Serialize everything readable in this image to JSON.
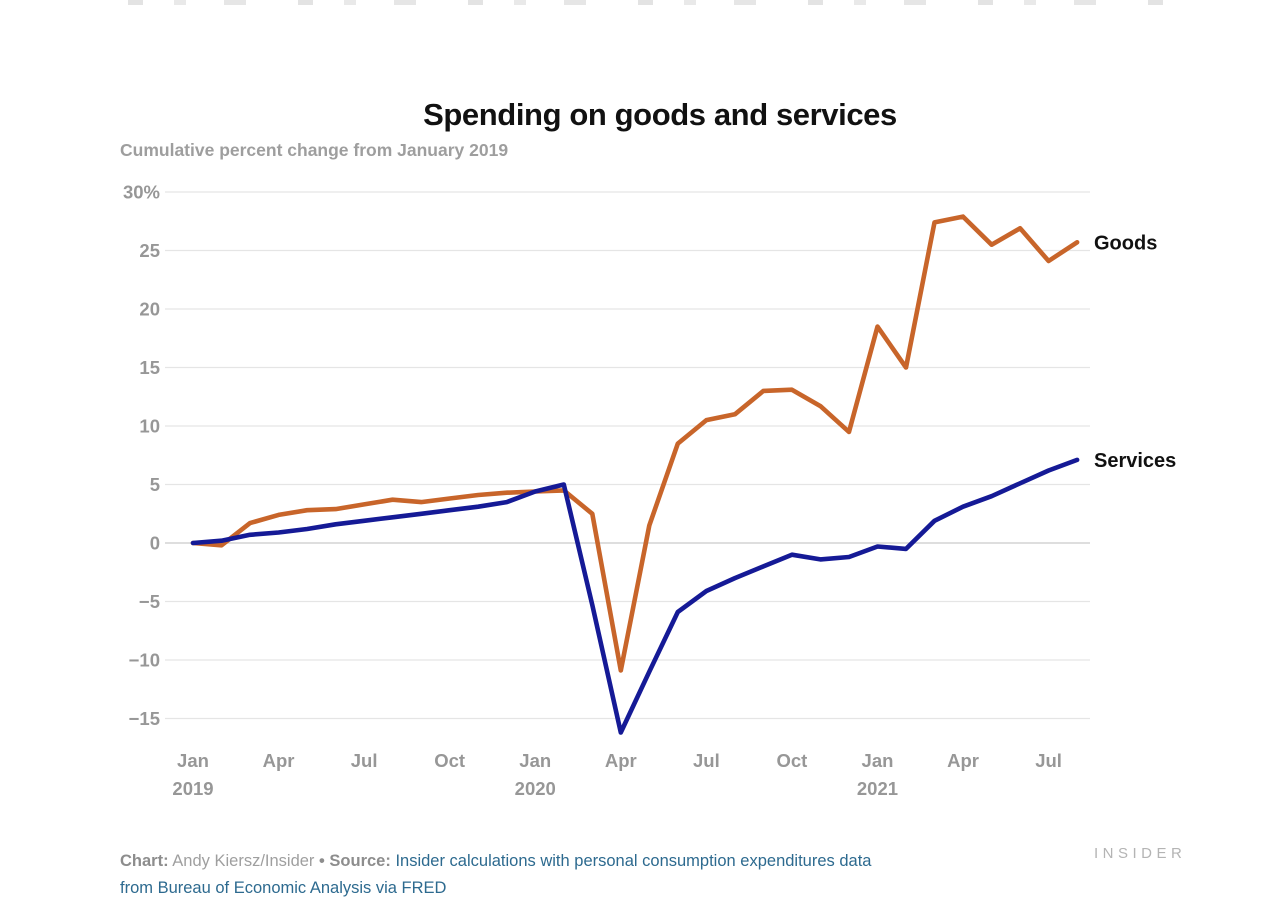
{
  "page": {
    "title": "Spending on goods and services",
    "subtitle": "Cumulative percent change from January 2019",
    "watermark": "INSIDER"
  },
  "footer": {
    "chart_label": "Chart:",
    "chart_credit": "Andy Kiersz/Insider",
    "separator": "•",
    "source_label": "Source:",
    "source_text": "Insider calculations with personal consumption expenditures data",
    "source_text_line2": "from Bureau of Economic Analysis via FRED"
  },
  "colors": {
    "goods_line": "#c8652a",
    "services_line": "#151a96",
    "gridline": "#e5e5e5",
    "zero_gridline": "#c9c9c9",
    "tick_label": "#979797",
    "series_label": "#111111",
    "source_link": "#2d6a8f"
  },
  "chart_data": {
    "type": "line",
    "title": "Spending on goods and services",
    "subtitle": "Cumulative percent change from January 2019",
    "xlabel": "",
    "ylabel": "Cumulative percent change from January 2019",
    "grid": "horizontal",
    "ylim": [
      -17.5,
      30
    ],
    "legend_position": "end-of-line-labels",
    "x": [
      "Jan 2019",
      "Feb 2019",
      "Mar 2019",
      "Apr 2019",
      "May 2019",
      "Jun 2019",
      "Jul 2019",
      "Aug 2019",
      "Sep 2019",
      "Oct 2019",
      "Nov 2019",
      "Dec 2019",
      "Jan 2020",
      "Feb 2020",
      "Mar 2020",
      "Apr 2020",
      "May 2020",
      "Jun 2020",
      "Jul 2020",
      "Aug 2020",
      "Sep 2020",
      "Oct 2020",
      "Nov 2020",
      "Dec 2020",
      "Jan 2021",
      "Feb 2021",
      "Mar 2021",
      "Apr 2021",
      "May 2021",
      "Jun 2021",
      "Jul 2021",
      "Aug 2021"
    ],
    "series": [
      {
        "name": "Goods",
        "color": "#c8652a",
        "values": [
          0,
          -0.2,
          1.7,
          2.4,
          2.8,
          2.9,
          3.3,
          3.7,
          3.5,
          3.8,
          4.1,
          4.3,
          4.4,
          4.5,
          2.5,
          -10.9,
          1.5,
          8.5,
          10.5,
          11.0,
          13.0,
          13.1,
          11.7,
          9.5,
          18.5,
          15.0,
          27.4,
          27.9,
          25.5,
          26.9,
          24.1,
          25.7
        ]
      },
      {
        "name": "Services",
        "color": "#151a96",
        "values": [
          0,
          0.2,
          0.7,
          0.9,
          1.2,
          1.6,
          1.9,
          2.2,
          2.5,
          2.8,
          3.1,
          3.5,
          4.4,
          5.0,
          -5.3,
          -16.2,
          -11.0,
          -5.9,
          -4.1,
          -3.0,
          -2.0,
          -1.0,
          -1.4,
          -1.2,
          -0.3,
          -0.5,
          1.9,
          3.1,
          4.0,
          5.1,
          6.2,
          7.1
        ]
      }
    ],
    "y_ticks": [
      {
        "value": 30,
        "label": "30%"
      },
      {
        "value": 25,
        "label": "25"
      },
      {
        "value": 20,
        "label": "20"
      },
      {
        "value": 15,
        "label": "15"
      },
      {
        "value": 10,
        "label": "10"
      },
      {
        "value": 5,
        "label": "5"
      },
      {
        "value": 0,
        "label": "0"
      },
      {
        "value": -5,
        "label": "−5"
      },
      {
        "value": -10,
        "label": "−10"
      },
      {
        "value": -15,
        "label": "−15"
      }
    ],
    "x_ticks": [
      {
        "month_index": 0,
        "label": "Jan",
        "year": "2019"
      },
      {
        "month_index": 3,
        "label": "Apr"
      },
      {
        "month_index": 6,
        "label": "Jul"
      },
      {
        "month_index": 9,
        "label": "Oct"
      },
      {
        "month_index": 12,
        "label": "Jan",
        "year": "2020"
      },
      {
        "month_index": 15,
        "label": "Apr"
      },
      {
        "month_index": 18,
        "label": "Jul"
      },
      {
        "month_index": 21,
        "label": "Oct"
      },
      {
        "month_index": 24,
        "label": "Jan",
        "year": "2021"
      },
      {
        "month_index": 27,
        "label": "Apr"
      },
      {
        "month_index": 30,
        "label": "Jul"
      }
    ]
  }
}
